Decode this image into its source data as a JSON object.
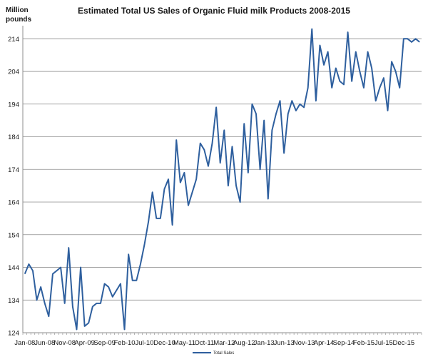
{
  "chart_data": {
    "type": "line",
    "title": "Estimated Total US Sales of Organic Fluid milk Products 2008-2015",
    "ylabel_line1": "Million",
    "ylabel_line2": "pounds",
    "xlabel": "",
    "ylim": [
      124,
      218
    ],
    "yticks": [
      124,
      134,
      144,
      154,
      164,
      174,
      184,
      194,
      204,
      214
    ],
    "grid": "horizontal",
    "legend_position": "bottom-center",
    "x_tick_labels": [
      "Jan-08",
      "Jun-08",
      "Nov-08",
      "Apr-09",
      "Sep-09",
      "Feb-10",
      "Jul-10",
      "Dec-10",
      "May-11",
      "Oct-11",
      "Mar-12",
      "Aug-12",
      "Jan-13",
      "Jun-13",
      "Nov-13",
      "Apr-14",
      "Sep-14",
      "Feb-15",
      "Jul-15",
      "Dec-15"
    ],
    "x_tick_every": 5,
    "series": [
      {
        "name": "Total Sales",
        "color": "#2e5f9e",
        "values": [
          142,
          145,
          143,
          134,
          138,
          133,
          129,
          142,
          143,
          144,
          133,
          150,
          132,
          125,
          144,
          126,
          127,
          132,
          133,
          133,
          139,
          138,
          135,
          137,
          139,
          125,
          148,
          140,
          140,
          145,
          151,
          158,
          167,
          159,
          159,
          168,
          171,
          157,
          183,
          170,
          173,
          163,
          167,
          171,
          182,
          180,
          175,
          182,
          193,
          176,
          186,
          169,
          181,
          169,
          164,
          188,
          173,
          194,
          191,
          174,
          189,
          165,
          186,
          191,
          195,
          179,
          191,
          195,
          192,
          194,
          193,
          199,
          217,
          195,
          212,
          206,
          210,
          199,
          205,
          201,
          200,
          216,
          201,
          210,
          204,
          199,
          210,
          205,
          195,
          199,
          202,
          192,
          207,
          204,
          199,
          214,
          214,
          213,
          214,
          213
        ]
      }
    ]
  }
}
